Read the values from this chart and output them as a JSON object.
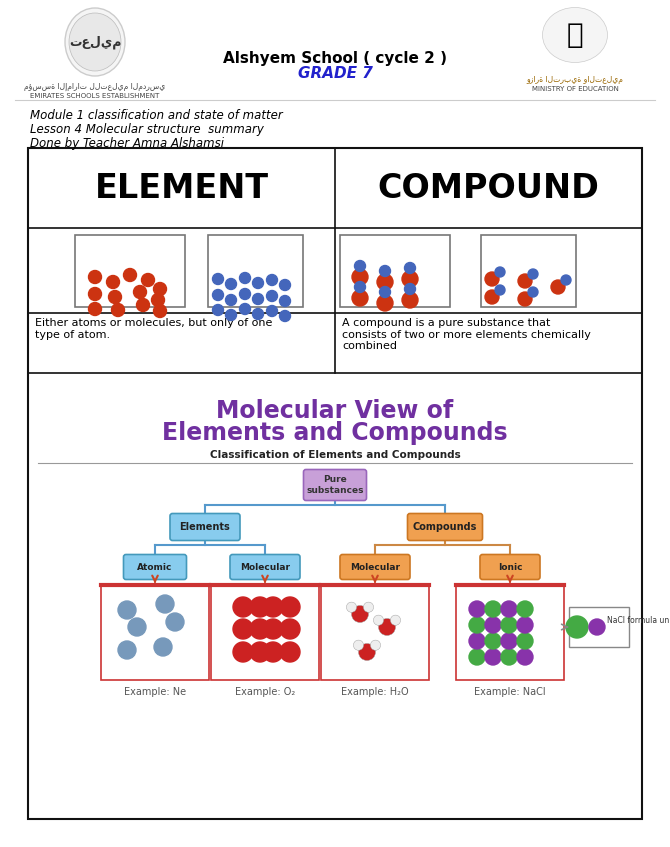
{
  "bg_color": "#ffffff",
  "header_school": "Alshyem School ( cycle 2 )",
  "header_grade": "GRADE 7",
  "header_grade_color": "#2222cc",
  "left_org_arabic": "مؤسسة الإمارات للتعليم المدرسي",
  "left_org": "EMIRATES SCHOOLS ESTABLISHMENT",
  "right_org_arabic": "وزارة التربية والتعليم",
  "right_org": "MINISTRY OF EDUCATION",
  "line1": "Module 1 classification and state of matter",
  "line2": "Lesson 4 Molecular structure  summary",
  "line3": "Done by Teacher Amna Alshamsi",
  "element_label": "ELEMENT",
  "compound_label": "COMPOUND",
  "element_desc": "Either atoms or molecules, but only of one\ntype of atom.",
  "compound_desc": "A compound is a pure substance that\nconsists of two or more elements chemically\ncombined",
  "mol_view_line1": "Molecular View of",
  "mol_view_line2": "Elements and Compounds",
  "mol_view_color": "#7030a0",
  "classif_label": "Classification of Elements and Compounds",
  "pure_box_color": "#c8a0d8",
  "pure_box_edge": "#9966bb",
  "pure_box_text": "Pure\nsubstances",
  "elements_box_color": "#88ccee",
  "elements_box_edge": "#4499bb",
  "elements_box_text": "Elements",
  "compounds_box_color": "#f0a050",
  "compounds_box_edge": "#cc7722",
  "compounds_box_text": "Compounds",
  "atomic_box_color": "#88ccee",
  "atomic_box_edge": "#4499bb",
  "atomic_box_text": "Atomic",
  "mol_e_box_color": "#88ccee",
  "mol_e_box_edge": "#4499bb",
  "mol_e_box_text": "Molecular",
  "mol_c_box_color": "#f0a050",
  "mol_c_box_edge": "#cc7722",
  "mol_c_box_text": "Molecular",
  "ionic_box_color": "#f0a050",
  "ionic_box_edge": "#cc7722",
  "ionic_box_text": "Ionic",
  "example_ne": "Example: Ne",
  "example_o2": "Example: O₂",
  "example_h2o": "Example: H₂O",
  "example_nacl": "Example: NaCl",
  "nacl_formula_text": "NaCl formula unit",
  "line_color_blue": "#5599cc",
  "line_color_orange": "#cc8844",
  "arrow_color": "#cc4422",
  "atom_red": "#cc3311",
  "atom_blue": "#4466bb",
  "atom_blue2": "#6699cc",
  "atom_green": "#44aa44",
  "atom_purple": "#8833aa",
  "atom_ne": "#7799bb",
  "atom_white": "#eeeeee"
}
